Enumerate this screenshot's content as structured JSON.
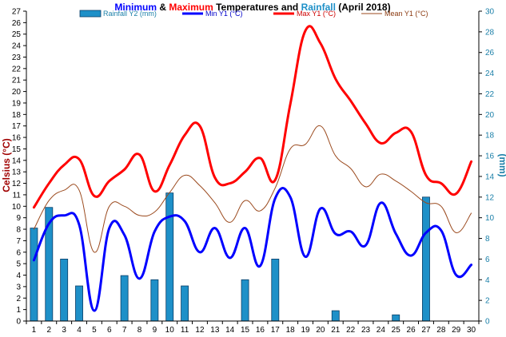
{
  "chart_data": {
    "type": "bar+line",
    "title_parts": [
      {
        "text": "Minimum",
        "color": "#0000ff"
      },
      {
        "text": " & ",
        "color": "#000000"
      },
      {
        "text": "Maximum",
        "color": "#ff0000"
      },
      {
        "text": " Temperatures and ",
        "color": "#000000"
      },
      {
        "text": "Rainfall",
        "color": "#1e90c8"
      },
      {
        "text": " (April 2018)",
        "color": "#000000"
      }
    ],
    "ylabel_left": "Celsius (°C)",
    "ylabel_right": "(mm)",
    "x": [
      1,
      2,
      3,
      4,
      5,
      6,
      7,
      8,
      9,
      10,
      11,
      12,
      13,
      14,
      15,
      16,
      17,
      18,
      19,
      20,
      21,
      22,
      23,
      24,
      25,
      26,
      27,
      28,
      29,
      30
    ],
    "ylim_left": [
      0,
      27
    ],
    "ylim_right": [
      0,
      30
    ],
    "yticks_left": [
      0,
      1,
      2,
      3,
      4,
      5,
      6,
      7,
      8,
      9,
      10,
      11,
      12,
      13,
      14,
      15,
      16,
      17,
      18,
      19,
      20,
      21,
      22,
      23,
      24,
      25,
      26,
      27
    ],
    "yticks_right": [
      0,
      2,
      4,
      6,
      8,
      10,
      12,
      14,
      16,
      18,
      20,
      22,
      24,
      26,
      28,
      30
    ],
    "legend_position": "top",
    "series": [
      {
        "name": "Rainfall Y2 (mm)",
        "kind": "bar",
        "axis": "right",
        "color": "#1e90c8",
        "values": [
          9,
          11,
          6,
          3.4,
          0,
          0,
          4.4,
          0,
          4,
          12.4,
          3.4,
          0,
          0,
          0,
          4,
          0,
          6,
          0,
          0,
          0,
          1,
          0,
          0,
          0,
          0.6,
          0,
          12,
          0,
          0,
          0
        ]
      },
      {
        "name": "Min Y1 (°C)",
        "kind": "line",
        "axis": "left",
        "color": "#0000ff",
        "values": [
          5.3,
          8.5,
          9.2,
          8.4,
          0.9,
          8.1,
          7.5,
          3.7,
          7.8,
          9.1,
          8.7,
          6.0,
          8.1,
          5.5,
          8.1,
          4.8,
          10.7,
          10.8,
          5.6,
          9.8,
          7.6,
          7.8,
          6.6,
          10.3,
          7.6,
          5.7,
          7.7,
          7.9,
          4.0,
          4.9
        ]
      },
      {
        "name": "Max Y1 (°C)",
        "kind": "line",
        "axis": "left",
        "color": "#ff0000",
        "values": [
          9.9,
          12.0,
          13.6,
          14.1,
          10.9,
          12.2,
          13.2,
          14.5,
          11.3,
          13.6,
          16.2,
          17.0,
          12.5,
          12.0,
          13.0,
          14.2,
          12.3,
          18.9,
          25.3,
          24.2,
          21.1,
          19.2,
          17.2,
          15.5,
          16.4,
          16.5,
          12.7,
          12.0,
          11.1,
          13.9
        ]
      },
      {
        "name": "Mean Y1 (°C)",
        "kind": "line",
        "axis": "left",
        "color": "#9b4a1e",
        "values": [
          8.0,
          10.5,
          11.4,
          11.4,
          6.0,
          10.0,
          10.0,
          9.2,
          9.5,
          11.2,
          12.7,
          11.8,
          10.3,
          8.6,
          10.5,
          9.6,
          11.6,
          15.0,
          15.4,
          17.0,
          14.4,
          13.3,
          11.7,
          12.8,
          12.2,
          11.3,
          10.3,
          10.0,
          7.7,
          9.4
        ]
      }
    ]
  }
}
